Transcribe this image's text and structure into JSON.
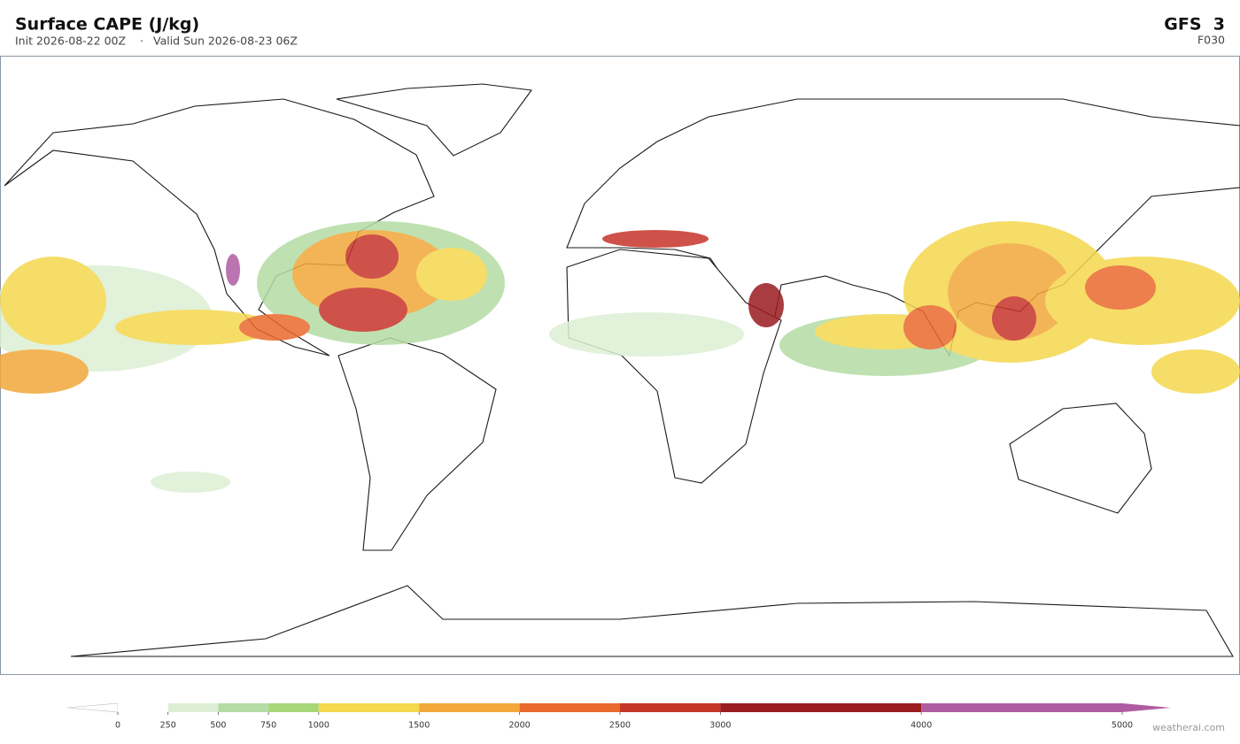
{
  "header": {
    "title": "Surface CAPE  (J/kg)",
    "init": "Init 2026-08-22 00Z",
    "separator": "·",
    "valid": "Valid Sun 2026-08-23 06Z",
    "model": "GFS  3",
    "forecast_hour": "F030"
  },
  "colorbar": {
    "ticks": [
      0,
      250,
      500,
      750,
      1000,
      1500,
      2000,
      2500,
      3000,
      4000,
      5000
    ],
    "colors": [
      "#ffffff",
      "#dcefd4",
      "#b4dca4",
      "#a6d778",
      "#f4d84e",
      "#f2a83a",
      "#e9692c",
      "#c6352a",
      "#9a1c20",
      "#b05ca2"
    ],
    "under_color": "#ffffff",
    "over_color": "#b05ca2"
  },
  "footer": {
    "credit": "weatherai.com"
  }
}
